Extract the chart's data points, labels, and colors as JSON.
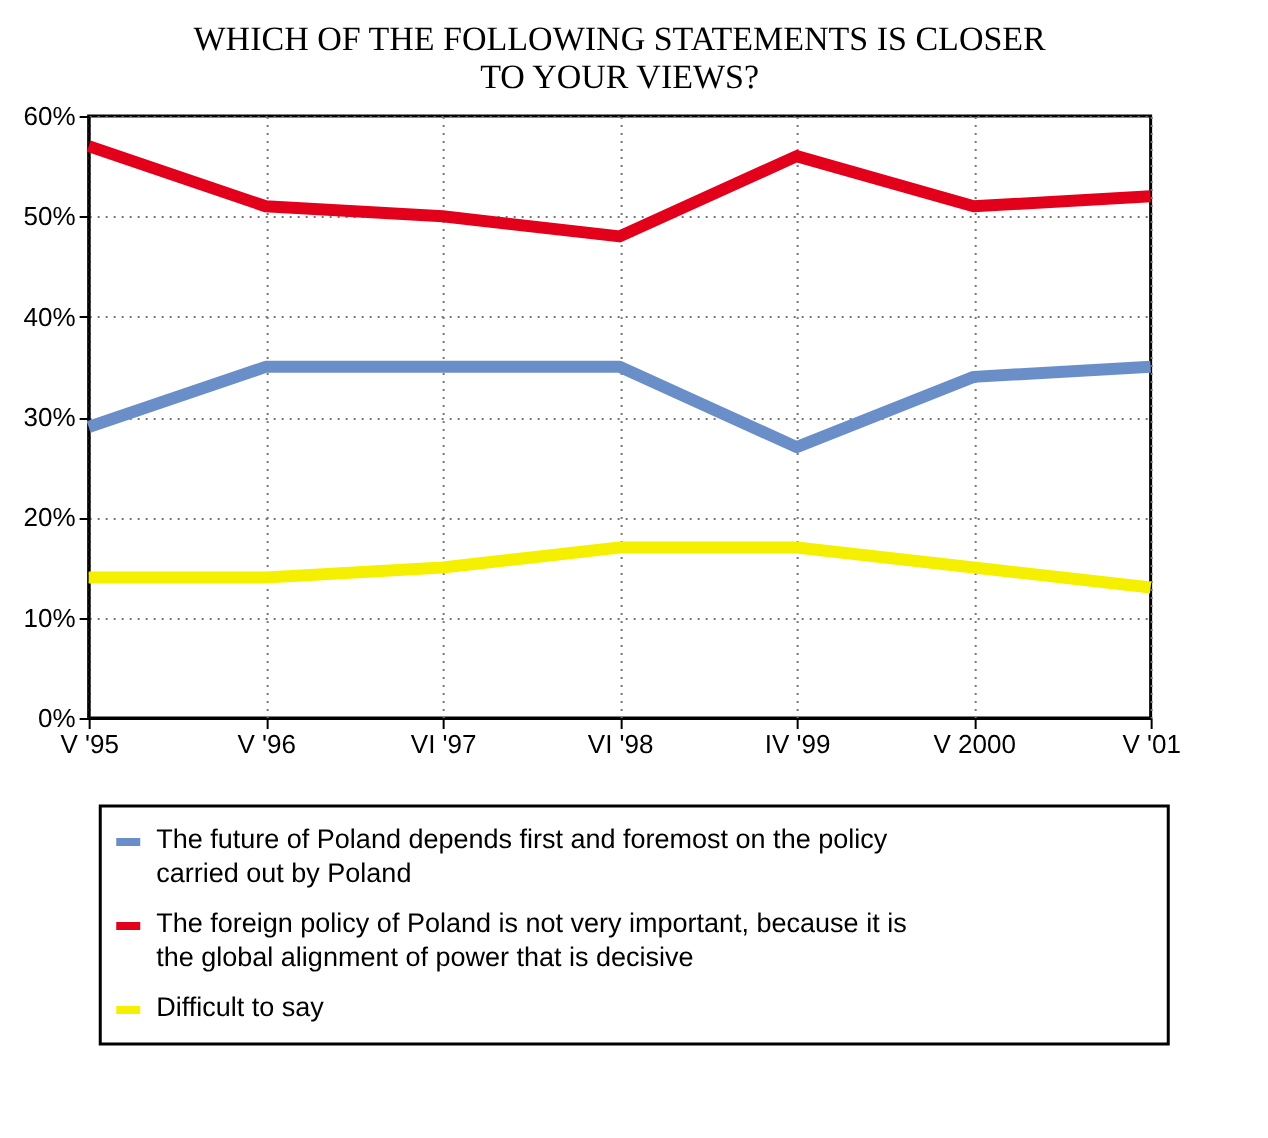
{
  "chart_data": {
    "type": "line",
    "title": "WHICH OF THE FOLLOWING STATEMENTS IS CLOSER TO YOUR VIEWS?",
    "categories": [
      "V '95",
      "V '96",
      "VI '97",
      "VI '98",
      "IV '99",
      "V 2000",
      "V '01"
    ],
    "series": [
      {
        "name": "The future of Poland depends first and foremost on the policy carried out by Poland",
        "color": "#6a8fc8",
        "values": [
          29,
          35,
          35,
          35,
          27,
          34,
          35
        ]
      },
      {
        "name": "The foreign policy of Poland is not very important, because it is the global alignment of power that is decisive",
        "color": "#e2001a",
        "values": [
          57,
          51,
          50,
          48,
          56,
          51,
          52
        ]
      },
      {
        "name": "Difficult to say",
        "color": "#f5f000",
        "values": [
          14,
          14,
          15,
          17,
          17,
          15,
          13
        ]
      }
    ],
    "ylim": [
      0,
      60
    ],
    "yticks": [
      {
        "value": 0,
        "label": "0%"
      },
      {
        "value": 10,
        "label": "10%"
      },
      {
        "value": 20,
        "label": "20%"
      },
      {
        "value": 30,
        "label": "30%"
      },
      {
        "value": 40,
        "label": "40%"
      },
      {
        "value": 50,
        "label": "50%"
      },
      {
        "value": 60,
        "label": "60%"
      }
    ],
    "grid": true,
    "legend": "bottom",
    "marker": "none",
    "line_style": "solid"
  }
}
